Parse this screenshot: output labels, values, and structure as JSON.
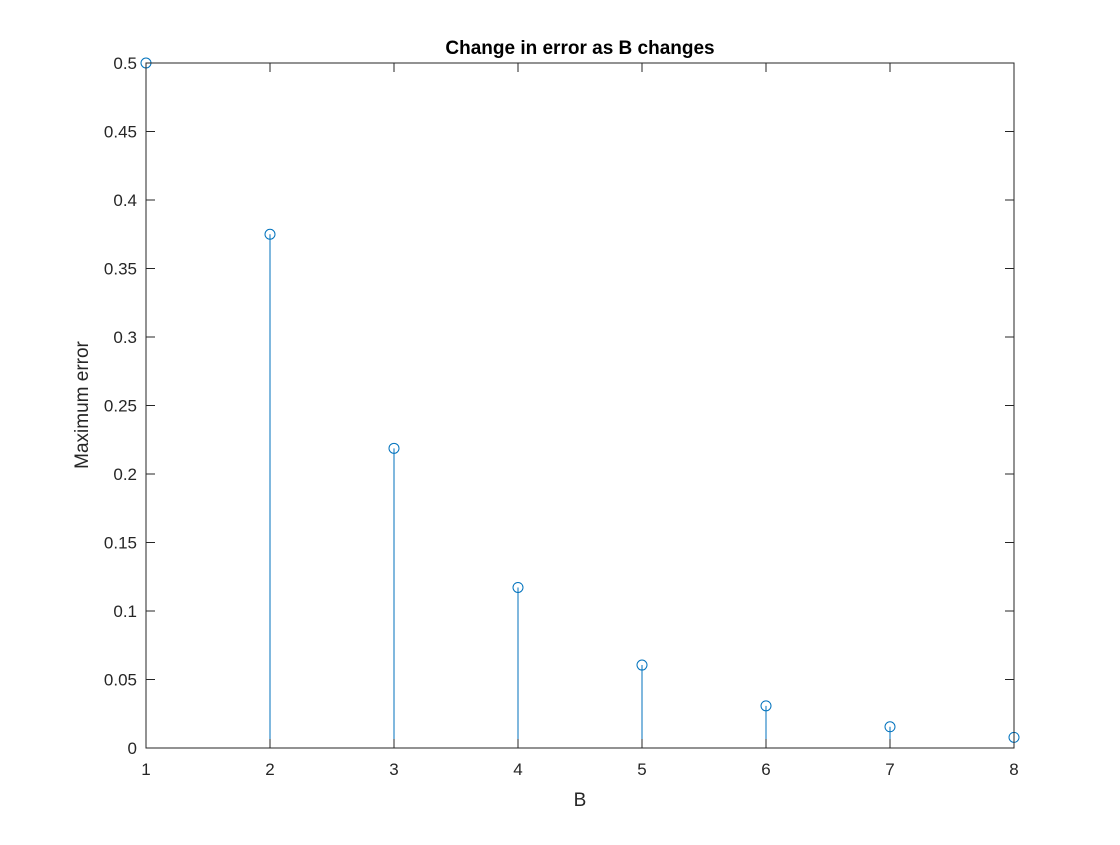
{
  "chart_data": {
    "type": "stem",
    "title": "Change in error as B changes",
    "xlabel": "B",
    "ylabel": "Maximum error",
    "xlim": [
      1,
      8
    ],
    "ylim": [
      0,
      0.5
    ],
    "xticks": [
      "1",
      "2",
      "3",
      "4",
      "5",
      "6",
      "7",
      "8"
    ],
    "yticks": [
      "0",
      "0.05",
      "0.1",
      "0.15",
      "0.2",
      "0.25",
      "0.3",
      "0.35",
      "0.4",
      "0.45",
      "0.5"
    ],
    "grid": false,
    "series": [
      {
        "x": [
          1,
          2,
          3,
          4,
          5,
          6,
          7,
          8
        ],
        "values": [
          0.5,
          0.375,
          0.21875,
          0.1171875,
          0.060546875,
          0.0307617,
          0.0155029,
          0.007782
        ],
        "color": "#0072BD",
        "marker": "circle"
      }
    ]
  }
}
